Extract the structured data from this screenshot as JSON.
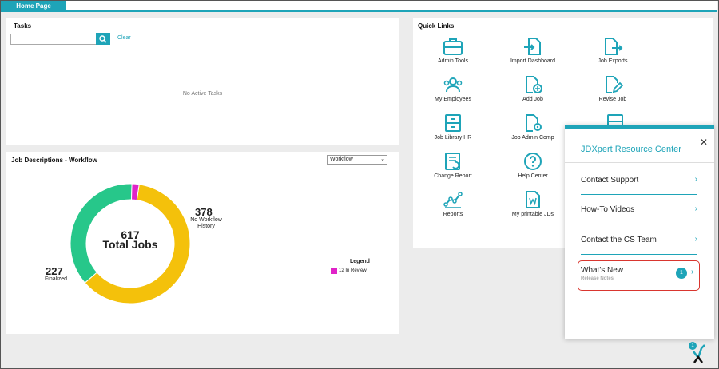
{
  "tabs": [
    {
      "label": "Home Page"
    }
  ],
  "tasks": {
    "title": "Tasks",
    "search_value": "",
    "clear_label": "Clear",
    "empty_text": "No Active Tasks"
  },
  "job_descriptions": {
    "title": "Job Descriptions - Workflow",
    "dropdown_value": "Workflow",
    "total": "617",
    "total_label": "Total Jobs",
    "callouts": [
      {
        "value": "378",
        "label_line1": "No Workflow",
        "label_line2": "History"
      },
      {
        "value": "227",
        "label_line1": "Finalized"
      }
    ],
    "legend_title": "Legend",
    "legend_items": [
      {
        "label": "12 In Review",
        "color": "#e023c8"
      }
    ]
  },
  "chart_data": {
    "type": "pie",
    "categories": [
      "No Workflow History",
      "Finalized",
      "In Review"
    ],
    "values": [
      378,
      227,
      12
    ],
    "colors": [
      "#f4c10b",
      "#27c78a",
      "#e023c8"
    ],
    "title": "617 Total Jobs"
  },
  "quick_links": {
    "title": "Quick Links",
    "items": [
      {
        "label": "Admin Tools",
        "icon": "briefcase-icon"
      },
      {
        "label": "Import Dashboard",
        "icon": "file-import-icon"
      },
      {
        "label": "Job Exports",
        "icon": "file-export-icon"
      },
      {
        "label": "My Employees",
        "icon": "users-icon"
      },
      {
        "label": "Add Job",
        "icon": "file-add-icon"
      },
      {
        "label": "Revise Job",
        "icon": "file-edit-icon"
      },
      {
        "label": "Job Library HR",
        "icon": "cabinet-icon"
      },
      {
        "label": "Job Admin Comp",
        "icon": "file-gear-icon"
      },
      {
        "label": "Change Report",
        "icon": "report-icon"
      },
      {
        "label": "Help Center",
        "icon": "help-icon"
      },
      {
        "label": "Reports",
        "icon": "chart-icon"
      },
      {
        "label": "My printable JDs",
        "icon": "word-doc-icon"
      }
    ]
  },
  "resource_center": {
    "title": "JDXpert Resource Center",
    "items": [
      {
        "label": "Contact Support"
      },
      {
        "label": "How-To Videos"
      },
      {
        "label": "Contact the CS Team"
      }
    ],
    "whats_new": {
      "label": "What's New",
      "sub": "Release Notes",
      "badge": "1"
    }
  },
  "launcher": {
    "badge": "1"
  },
  "accent_color": "#1ea4b8"
}
